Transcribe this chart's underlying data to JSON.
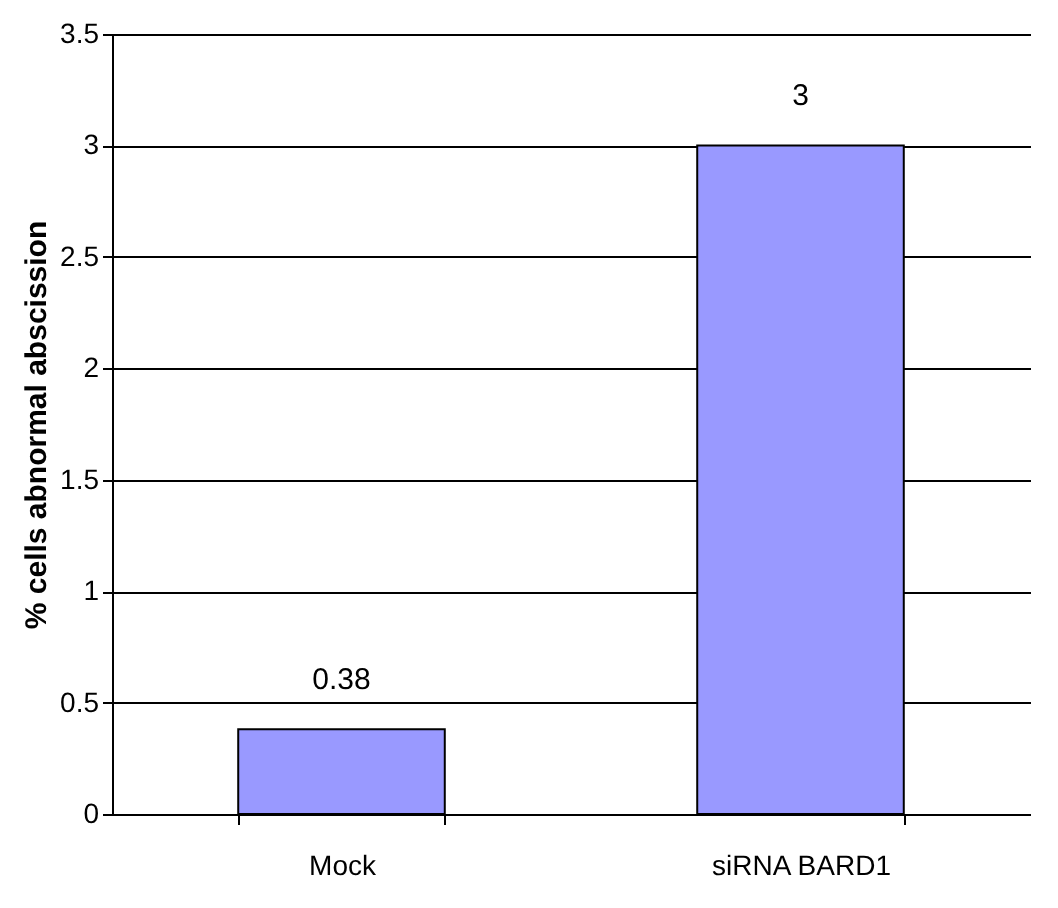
{
  "chart_data": {
    "type": "bar",
    "ylabel": "% cells abnormal abscission",
    "categories": [
      "Mock",
      "siRNA BARD1"
    ],
    "values": [
      0.38,
      3
    ],
    "color": "#9999ff",
    "ylim": [
      0,
      3.5
    ],
    "yticks": [
      0,
      0.5,
      1,
      1.5,
      2,
      2.5,
      3,
      3.5
    ],
    "grid": "y",
    "data_labels": true
  }
}
